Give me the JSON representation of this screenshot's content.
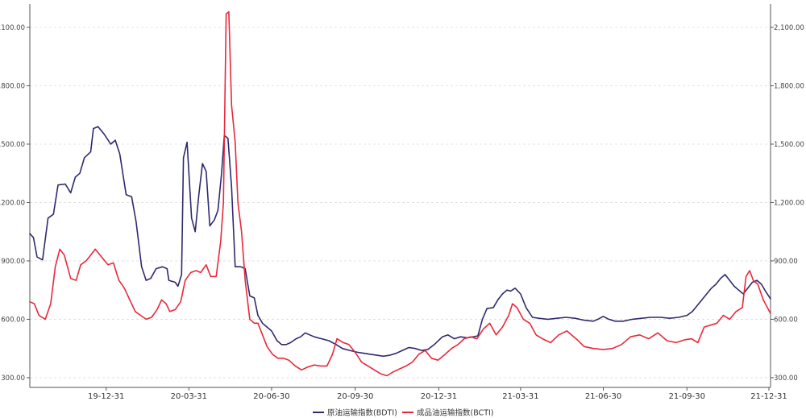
{
  "chart_data": {
    "type": "line",
    "title": "",
    "xlabel": "",
    "ylabel": "",
    "x_ticks": [
      "19-12-31",
      "20-03-31",
      "20-06-30",
      "20-09-30",
      "20-12-31",
      "21-03-31",
      "21-06-30",
      "21-09-30",
      "21-12-31"
    ],
    "x_range": [
      "2019-10-08",
      "2021-12-31"
    ],
    "ylim": [
      250,
      2220
    ],
    "y_ticks": [
      300,
      600,
      900,
      1200,
      1500,
      1800,
      2100
    ],
    "y_tick_labels": [
      "300.00",
      "600.00",
      "900.00",
      "1,200.00",
      "1,500.00",
      "1,800.00",
      "2,100.00"
    ],
    "grid": "horizontal-dashed",
    "legend_position": "bottom-center",
    "series": [
      {
        "name": "原油运输指数(BDTI)",
        "color": "#2e2a6e",
        "points": [
          [
            "2019-10-08",
            1040
          ],
          [
            "2019-10-12",
            1020
          ],
          [
            "2019-10-16",
            920
          ],
          [
            "2019-10-22",
            905
          ],
          [
            "2019-10-28",
            1120
          ],
          [
            "2019-11-03",
            1140
          ],
          [
            "2019-11-08",
            1290
          ],
          [
            "2019-11-16",
            1295
          ],
          [
            "2019-11-22",
            1250
          ],
          [
            "2019-11-27",
            1330
          ],
          [
            "2019-12-02",
            1350
          ],
          [
            "2019-12-07",
            1430
          ],
          [
            "2019-12-14",
            1460
          ],
          [
            "2019-12-17",
            1580
          ],
          [
            "2019-12-22",
            1590
          ],
          [
            "2019-12-29",
            1550
          ],
          [
            "2020-01-05",
            1500
          ],
          [
            "2020-01-10",
            1520
          ],
          [
            "2020-01-15",
            1450
          ],
          [
            "2020-01-22",
            1240
          ],
          [
            "2020-01-28",
            1230
          ],
          [
            "2020-02-02",
            1100
          ],
          [
            "2020-02-08",
            870
          ],
          [
            "2020-02-13",
            800
          ],
          [
            "2020-02-18",
            810
          ],
          [
            "2020-02-24",
            860
          ],
          [
            "2020-03-02",
            870
          ],
          [
            "2020-03-07",
            860
          ],
          [
            "2020-03-09",
            800
          ],
          [
            "2020-03-16",
            790
          ],
          [
            "2020-03-19",
            770
          ],
          [
            "2020-03-23",
            830
          ],
          [
            "2020-03-25",
            1430
          ],
          [
            "2020-03-29",
            1510
          ],
          [
            "2020-04-03",
            1120
          ],
          [
            "2020-04-07",
            1050
          ],
          [
            "2020-04-11",
            1240
          ],
          [
            "2020-04-15",
            1400
          ],
          [
            "2020-04-19",
            1360
          ],
          [
            "2020-04-23",
            1080
          ],
          [
            "2020-04-28",
            1110
          ],
          [
            "2020-05-02",
            1160
          ],
          [
            "2020-05-06",
            1350
          ],
          [
            "2020-05-09",
            1545
          ],
          [
            "2020-05-13",
            1530
          ],
          [
            "2020-05-17",
            1280
          ],
          [
            "2020-05-21",
            870
          ],
          [
            "2020-05-27",
            870
          ],
          [
            "2020-06-01",
            860
          ],
          [
            "2020-06-06",
            720
          ],
          [
            "2020-06-11",
            710
          ],
          [
            "2020-06-15",
            620
          ],
          [
            "2020-06-20",
            580
          ],
          [
            "2020-06-25",
            560
          ],
          [
            "2020-06-30",
            540
          ],
          [
            "2020-07-06",
            490
          ],
          [
            "2020-07-11",
            470
          ],
          [
            "2020-07-16",
            470
          ],
          [
            "2020-07-21",
            480
          ],
          [
            "2020-07-27",
            500
          ],
          [
            "2020-08-01",
            510
          ],
          [
            "2020-08-06",
            530
          ],
          [
            "2020-08-11",
            520
          ],
          [
            "2020-08-16",
            510
          ],
          [
            "2020-08-24",
            500
          ],
          [
            "2020-09-01",
            490
          ],
          [
            "2020-09-09",
            470
          ],
          [
            "2020-09-16",
            450
          ],
          [
            "2020-09-24",
            440
          ],
          [
            "2020-10-03",
            430
          ],
          [
            "2020-10-10",
            425
          ],
          [
            "2020-10-17",
            420
          ],
          [
            "2020-10-24",
            415
          ],
          [
            "2020-10-31",
            410
          ],
          [
            "2020-11-07",
            415
          ],
          [
            "2020-11-14",
            425
          ],
          [
            "2020-11-21",
            440
          ],
          [
            "2020-11-28",
            455
          ],
          [
            "2020-12-05",
            450
          ],
          [
            "2020-12-12",
            440
          ],
          [
            "2020-12-19",
            445
          ],
          [
            "2020-12-26",
            470
          ],
          [
            "2021-01-04",
            510
          ],
          [
            "2021-01-10",
            520
          ],
          [
            "2021-01-17",
            500
          ],
          [
            "2021-01-24",
            510
          ],
          [
            "2021-01-31",
            505
          ],
          [
            "2021-02-07",
            510
          ],
          [
            "2021-02-12",
            515
          ],
          [
            "2021-02-17",
            600
          ],
          [
            "2021-02-22",
            655
          ],
          [
            "2021-03-01",
            660
          ],
          [
            "2021-03-06",
            700
          ],
          [
            "2021-03-11",
            730
          ],
          [
            "2021-03-16",
            750
          ],
          [
            "2021-03-20",
            745
          ],
          [
            "2021-03-25",
            760
          ],
          [
            "2021-03-31",
            730
          ],
          [
            "2021-04-06",
            660
          ],
          [
            "2021-04-13",
            610
          ],
          [
            "2021-04-20",
            605
          ],
          [
            "2021-04-30",
            600
          ],
          [
            "2021-05-10",
            605
          ],
          [
            "2021-05-20",
            610
          ],
          [
            "2021-05-30",
            605
          ],
          [
            "2021-06-09",
            595
          ],
          [
            "2021-06-19",
            590
          ],
          [
            "2021-06-24",
            600
          ],
          [
            "2021-06-30",
            615
          ],
          [
            "2021-07-06",
            600
          ],
          [
            "2021-07-13",
            590
          ],
          [
            "2021-07-22",
            590
          ],
          [
            "2021-08-01",
            600
          ],
          [
            "2021-08-11",
            605
          ],
          [
            "2021-08-21",
            610
          ],
          [
            "2021-09-01",
            610
          ],
          [
            "2021-09-11",
            605
          ],
          [
            "2021-09-21",
            610
          ],
          [
            "2021-09-30",
            620
          ],
          [
            "2021-10-06",
            640
          ],
          [
            "2021-10-13",
            680
          ],
          [
            "2021-10-20",
            720
          ],
          [
            "2021-10-27",
            760
          ],
          [
            "2021-11-01",
            780
          ],
          [
            "2021-11-06",
            810
          ],
          [
            "2021-11-11",
            830
          ],
          [
            "2021-11-16",
            800
          ],
          [
            "2021-11-21",
            770
          ],
          [
            "2021-11-26",
            750
          ],
          [
            "2021-12-01",
            730
          ],
          [
            "2021-12-06",
            760
          ],
          [
            "2021-12-11",
            790
          ],
          [
            "2021-12-16",
            800
          ],
          [
            "2021-12-21",
            780
          ],
          [
            "2021-12-26",
            740
          ],
          [
            "2021-12-31",
            705
          ]
        ]
      },
      {
        "name": "成品油运输指数(BCTI)",
        "color": "#e8283a",
        "points": [
          [
            "2019-10-08",
            690
          ],
          [
            "2019-10-13",
            680
          ],
          [
            "2019-10-18",
            620
          ],
          [
            "2019-10-25",
            600
          ],
          [
            "2019-10-31",
            680
          ],
          [
            "2019-11-05",
            870
          ],
          [
            "2019-11-10",
            960
          ],
          [
            "2019-11-15",
            930
          ],
          [
            "2019-11-22",
            810
          ],
          [
            "2019-11-28",
            800
          ],
          [
            "2019-12-03",
            880
          ],
          [
            "2019-12-09",
            900
          ],
          [
            "2019-12-14",
            930
          ],
          [
            "2019-12-19",
            960
          ],
          [
            "2019-12-26",
            920
          ],
          [
            "2020-01-02",
            880
          ],
          [
            "2020-01-08",
            890
          ],
          [
            "2020-01-14",
            800
          ],
          [
            "2020-01-20",
            760
          ],
          [
            "2020-01-26",
            700
          ],
          [
            "2020-02-01",
            640
          ],
          [
            "2020-02-07",
            620
          ],
          [
            "2020-02-13",
            600
          ],
          [
            "2020-02-19",
            610
          ],
          [
            "2020-02-25",
            650
          ],
          [
            "2020-03-01",
            700
          ],
          [
            "2020-03-06",
            680
          ],
          [
            "2020-03-10",
            640
          ],
          [
            "2020-03-16",
            650
          ],
          [
            "2020-03-22",
            690
          ],
          [
            "2020-03-27",
            800
          ],
          [
            "2020-04-02",
            840
          ],
          [
            "2020-04-08",
            850
          ],
          [
            "2020-04-13",
            840
          ],
          [
            "2020-04-19",
            880
          ],
          [
            "2020-04-24",
            820
          ],
          [
            "2020-04-30",
            820
          ],
          [
            "2020-05-05",
            1000
          ],
          [
            "2020-05-08",
            1200
          ],
          [
            "2020-05-11",
            2170
          ],
          [
            "2020-05-14",
            2180
          ],
          [
            "2020-05-17",
            1700
          ],
          [
            "2020-05-21",
            1510
          ],
          [
            "2020-05-24",
            1200
          ],
          [
            "2020-05-28",
            1050
          ],
          [
            "2020-06-01",
            800
          ],
          [
            "2020-06-06",
            600
          ],
          [
            "2020-06-11",
            580
          ],
          [
            "2020-06-15",
            580
          ],
          [
            "2020-06-20",
            520
          ],
          [
            "2020-06-25",
            460
          ],
          [
            "2020-07-01",
            420
          ],
          [
            "2020-07-07",
            400
          ],
          [
            "2020-07-13",
            400
          ],
          [
            "2020-07-19",
            390
          ],
          [
            "2020-07-26",
            360
          ],
          [
            "2020-08-02",
            340
          ],
          [
            "2020-08-09",
            355
          ],
          [
            "2020-08-16",
            365
          ],
          [
            "2020-08-23",
            360
          ],
          [
            "2020-08-30",
            360
          ],
          [
            "2020-09-05",
            420
          ],
          [
            "2020-09-10",
            500
          ],
          [
            "2020-09-17",
            480
          ],
          [
            "2020-09-23",
            470
          ],
          [
            "2020-09-30",
            430
          ],
          [
            "2020-10-07",
            380
          ],
          [
            "2020-10-14",
            360
          ],
          [
            "2020-10-21",
            340
          ],
          [
            "2020-10-28",
            320
          ],
          [
            "2020-11-04",
            310
          ],
          [
            "2020-11-11",
            330
          ],
          [
            "2020-11-18",
            345
          ],
          [
            "2020-11-25",
            360
          ],
          [
            "2020-12-02",
            380
          ],
          [
            "2020-12-09",
            420
          ],
          [
            "2020-12-16",
            440
          ],
          [
            "2020-12-23",
            400
          ],
          [
            "2020-12-30",
            390
          ],
          [
            "2021-01-07",
            420
          ],
          [
            "2021-01-14",
            450
          ],
          [
            "2021-01-21",
            470
          ],
          [
            "2021-01-28",
            500
          ],
          [
            "2021-02-04",
            510
          ],
          [
            "2021-02-11",
            500
          ],
          [
            "2021-02-18",
            550
          ],
          [
            "2021-02-25",
            580
          ],
          [
            "2021-03-04",
            520
          ],
          [
            "2021-03-11",
            560
          ],
          [
            "2021-03-18",
            620
          ],
          [
            "2021-03-22",
            680
          ],
          [
            "2021-03-27",
            660
          ],
          [
            "2021-04-03",
            600
          ],
          [
            "2021-04-10",
            580
          ],
          [
            "2021-04-17",
            520
          ],
          [
            "2021-04-24",
            500
          ],
          [
            "2021-05-03",
            480
          ],
          [
            "2021-05-12",
            520
          ],
          [
            "2021-05-21",
            540
          ],
          [
            "2021-05-31",
            500
          ],
          [
            "2021-06-09",
            460
          ],
          [
            "2021-06-19",
            450
          ],
          [
            "2021-06-30",
            445
          ],
          [
            "2021-07-10",
            450
          ],
          [
            "2021-07-20",
            470
          ],
          [
            "2021-07-30",
            510
          ],
          [
            "2021-08-09",
            520
          ],
          [
            "2021-08-19",
            500
          ],
          [
            "2021-08-29",
            530
          ],
          [
            "2021-09-08",
            490
          ],
          [
            "2021-09-18",
            480
          ],
          [
            "2021-09-28",
            495
          ],
          [
            "2021-10-05",
            500
          ],
          [
            "2021-10-12",
            480
          ],
          [
            "2021-10-19",
            560
          ],
          [
            "2021-10-26",
            570
          ],
          [
            "2021-11-02",
            580
          ],
          [
            "2021-11-09",
            620
          ],
          [
            "2021-11-16",
            600
          ],
          [
            "2021-11-23",
            640
          ],
          [
            "2021-11-30",
            660
          ],
          [
            "2021-12-04",
            820
          ],
          [
            "2021-12-08",
            850
          ],
          [
            "2021-12-12",
            800
          ],
          [
            "2021-12-17",
            780
          ],
          [
            "2021-12-23",
            700
          ],
          [
            "2021-12-31",
            630
          ]
        ]
      }
    ]
  }
}
